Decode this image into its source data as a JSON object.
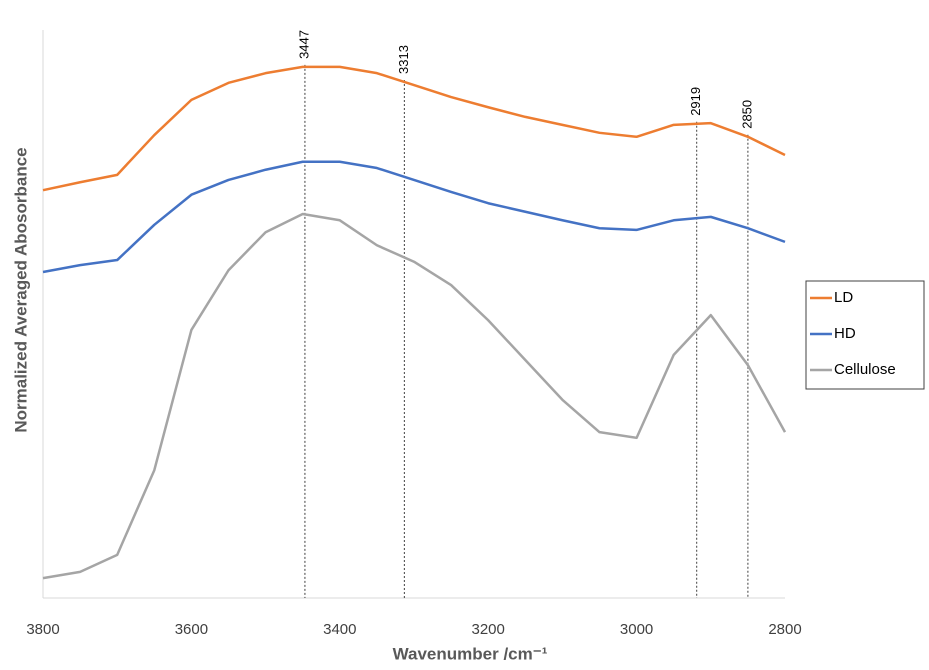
{
  "chart_data": {
    "type": "line",
    "x_label": "Wavenumber /cm⁻¹",
    "y_label": "Normalized Averaged Abosorbance",
    "x": [
      3800,
      3750,
      3700,
      3650,
      3600,
      3550,
      3500,
      3450,
      3400,
      3350,
      3300,
      3250,
      3200,
      3150,
      3100,
      3050,
      3000,
      2950,
      2900,
      2850,
      2800
    ],
    "series": [
      {
        "name": "LD",
        "color": "#ed7d31",
        "values": [
          0.718,
          0.732,
          0.745,
          0.815,
          0.877,
          0.907,
          0.924,
          0.935,
          0.935,
          0.924,
          0.903,
          0.882,
          0.864,
          0.847,
          0.833,
          0.819,
          0.812,
          0.833,
          0.836,
          0.812,
          0.78
        ]
      },
      {
        "name": "HD",
        "color": "#4472c4",
        "values": [
          0.574,
          0.586,
          0.595,
          0.657,
          0.71,
          0.736,
          0.754,
          0.768,
          0.768,
          0.757,
          0.736,
          0.715,
          0.695,
          0.68,
          0.665,
          0.651,
          0.648,
          0.665,
          0.671,
          0.651,
          0.627
        ]
      },
      {
        "name": "Cellulose",
        "color": "#a5a5a5",
        "values": [
          0.035,
          0.046,
          0.076,
          0.225,
          0.472,
          0.577,
          0.644,
          0.676,
          0.665,
          0.621,
          0.592,
          0.551,
          0.489,
          0.419,
          0.349,
          0.292,
          0.282,
          0.428,
          0.498,
          0.41,
          0.292
        ]
      }
    ],
    "xlim": [
      3800,
      2800
    ],
    "xticks": [
      3800,
      3600,
      3400,
      3200,
      3000,
      2800
    ],
    "ylim": [
      0,
      1
    ],
    "annotations": [
      3447,
      3313,
      2919,
      2850
    ],
    "legend": "right"
  }
}
